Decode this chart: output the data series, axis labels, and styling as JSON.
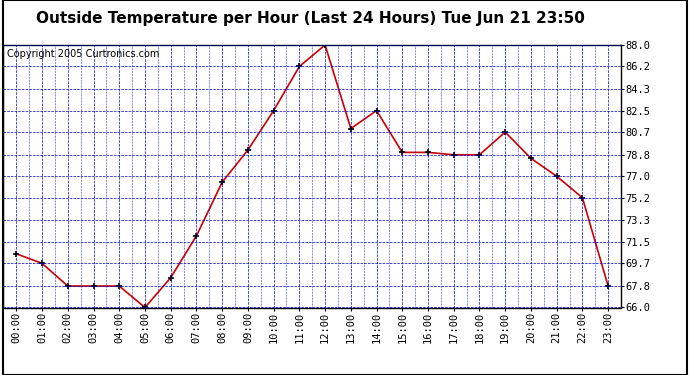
{
  "title": "Outside Temperature per Hour (Last 24 Hours) Tue Jun 21 23:50",
  "copyright": "Copyright 2005 Curtronics.com",
  "hours": [
    "00:00",
    "01:00",
    "02:00",
    "03:00",
    "04:00",
    "05:00",
    "06:00",
    "07:00",
    "08:00",
    "09:00",
    "10:00",
    "11:00",
    "12:00",
    "13:00",
    "14:00",
    "15:00",
    "16:00",
    "17:00",
    "18:00",
    "19:00",
    "20:00",
    "21:00",
    "22:00",
    "23:00"
  ],
  "values": [
    70.5,
    69.7,
    67.8,
    67.8,
    67.8,
    66.0,
    68.5,
    72.0,
    76.5,
    79.2,
    82.5,
    86.2,
    88.0,
    81.0,
    82.5,
    79.0,
    79.0,
    78.8,
    78.8,
    80.7,
    78.5,
    77.0,
    75.2,
    67.8
  ],
  "line_color": "#cc0000",
  "marker_color": "#000000",
  "bg_color": "#ffffff",
  "grid_color": "#0000cc",
  "outer_bg": "#ffffff",
  "title_color": "#000000",
  "border_color": "#000000",
  "ylim": [
    66.0,
    88.0
  ],
  "yticks": [
    66.0,
    67.8,
    69.7,
    71.5,
    73.3,
    75.2,
    77.0,
    78.8,
    80.7,
    82.5,
    84.3,
    86.2,
    88.0
  ],
  "title_fontsize": 11,
  "copyright_fontsize": 7,
  "tick_fontsize": 7.5
}
